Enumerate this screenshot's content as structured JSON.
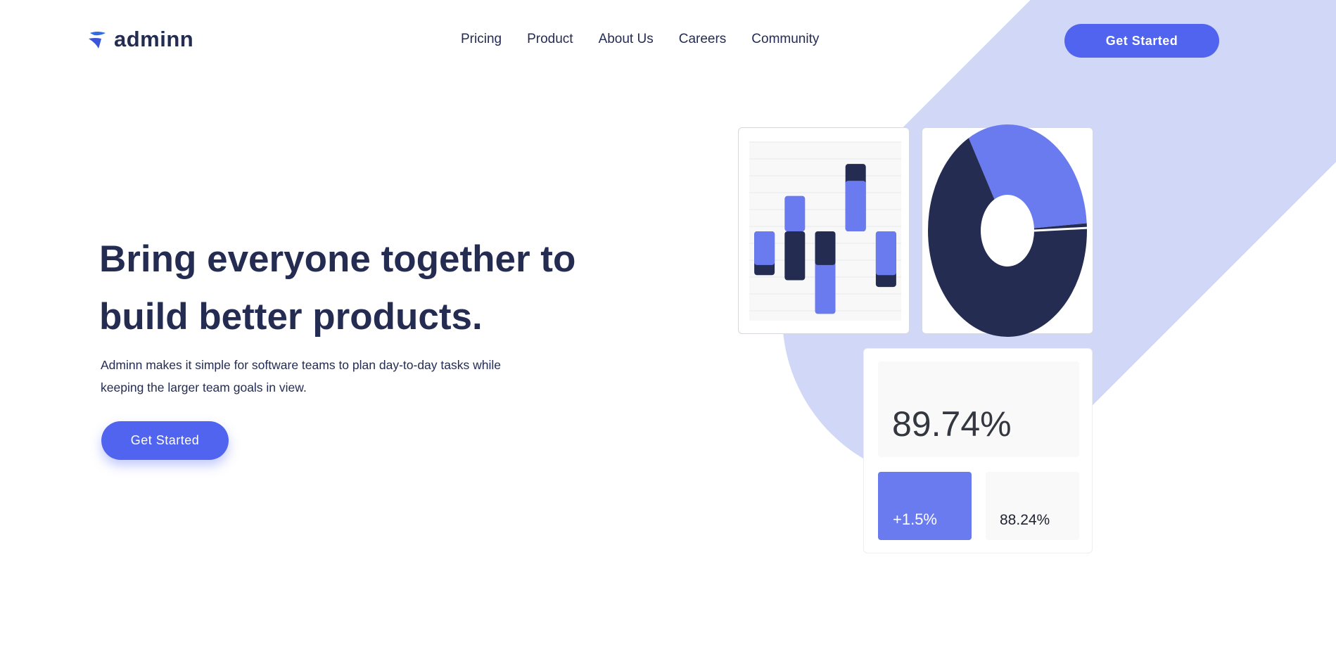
{
  "brand": {
    "name": "adminn"
  },
  "nav": {
    "items": [
      "Pricing",
      "Product",
      "About Us",
      "Careers",
      "Community"
    ],
    "cta": "Get Started"
  },
  "hero": {
    "title_line1": "Bring everyone together to",
    "title_line2": "build better products.",
    "description_line1": "Adminn makes it simple for software teams to plan day-to-day tasks while",
    "description_line2": "keeping the larger team goals in view.",
    "cta": "Get Started"
  },
  "colors": {
    "primary": "#5064f0",
    "accent": "#6a7bef",
    "dark": "#242c52",
    "background_shape": "#d1d7f7"
  },
  "chart_data": [
    {
      "type": "bar",
      "categories": [
        "1",
        "2",
        "3",
        "4",
        "5"
      ],
      "ylim": [
        -5.3,
        5.3
      ],
      "grid": true,
      "series": [
        {
          "color": "#242c52",
          "values": [
            -2.6,
            -2.9,
            -2,
            4,
            -3.3
          ]
        },
        {
          "color": "#6a7bef",
          "values": [
            -2,
            2.1,
            -4.9,
            3,
            -2.6
          ]
        }
      ]
    },
    {
      "type": "pie",
      "donut": true,
      "values": [
        32,
        68
      ],
      "colors": [
        "#6a7bef",
        "#242c52"
      ]
    }
  ],
  "stats": {
    "main": "89.74%",
    "change": "+1.5%",
    "secondary": "88.24%"
  }
}
